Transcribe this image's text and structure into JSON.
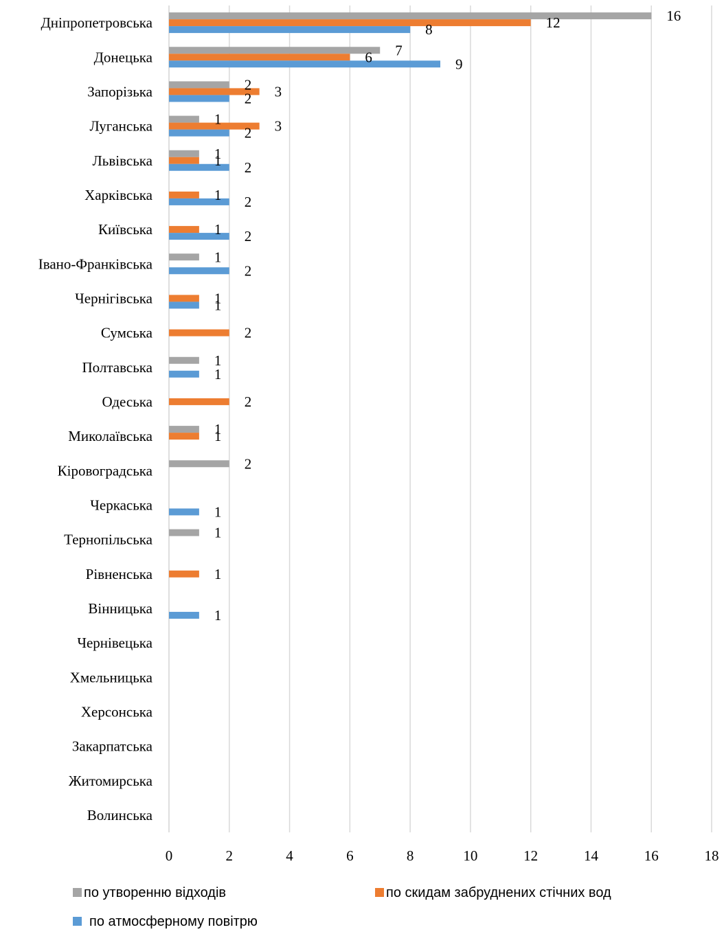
{
  "chart_data": {
    "type": "bar",
    "orientation": "horizontal",
    "categories": [
      "Дніпропетровська",
      "Донецька",
      "Запорізька",
      "Луганська",
      "Львівська",
      "Харківська",
      "Київська",
      "Івано-Франківська",
      "Чернігівська",
      "Сумська",
      "Полтавська",
      "Одеська",
      "Миколаївська",
      "Кіровоградська",
      "Черкаська",
      "Тернопільська",
      "Рівненська",
      "Вінницька",
      "Чернівецька",
      "Хмельницька",
      "Херсонська",
      "Закарпатська",
      "Житомирська",
      "Волинська"
    ],
    "series": [
      {
        "name": "по утворенню відходів",
        "color": "#a5a5a5",
        "values": [
          16,
          7,
          2,
          1,
          1,
          0,
          0,
          1,
          0,
          0,
          1,
          0,
          1,
          2,
          0,
          1,
          0,
          0,
          0,
          0,
          0,
          0,
          0,
          0
        ]
      },
      {
        "name": "по скидам забруднених стічних вод",
        "color": "#ed7d31",
        "values": [
          12,
          6,
          3,
          3,
          1,
          1,
          1,
          0,
          1,
          2,
          0,
          2,
          1,
          0,
          0,
          0,
          1,
          0,
          0,
          0,
          0,
          0,
          0,
          0
        ]
      },
      {
        "name": "по атмосферному повітрю",
        "color": "#5b9bd5",
        "values": [
          8,
          9,
          2,
          2,
          2,
          2,
          2,
          2,
          1,
          0,
          1,
          0,
          0,
          0,
          1,
          0,
          0,
          1,
          0,
          0,
          0,
          0,
          0,
          0
        ]
      }
    ],
    "xlim": [
      0,
      18
    ],
    "xticks": [
      "0",
      "2",
      "4",
      "6",
      "8",
      "10",
      "12",
      "14",
      "16",
      "18"
    ],
    "grid": true,
    "legend_position": "bottom",
    "title": "",
    "xlabel": "",
    "ylabel": ""
  }
}
